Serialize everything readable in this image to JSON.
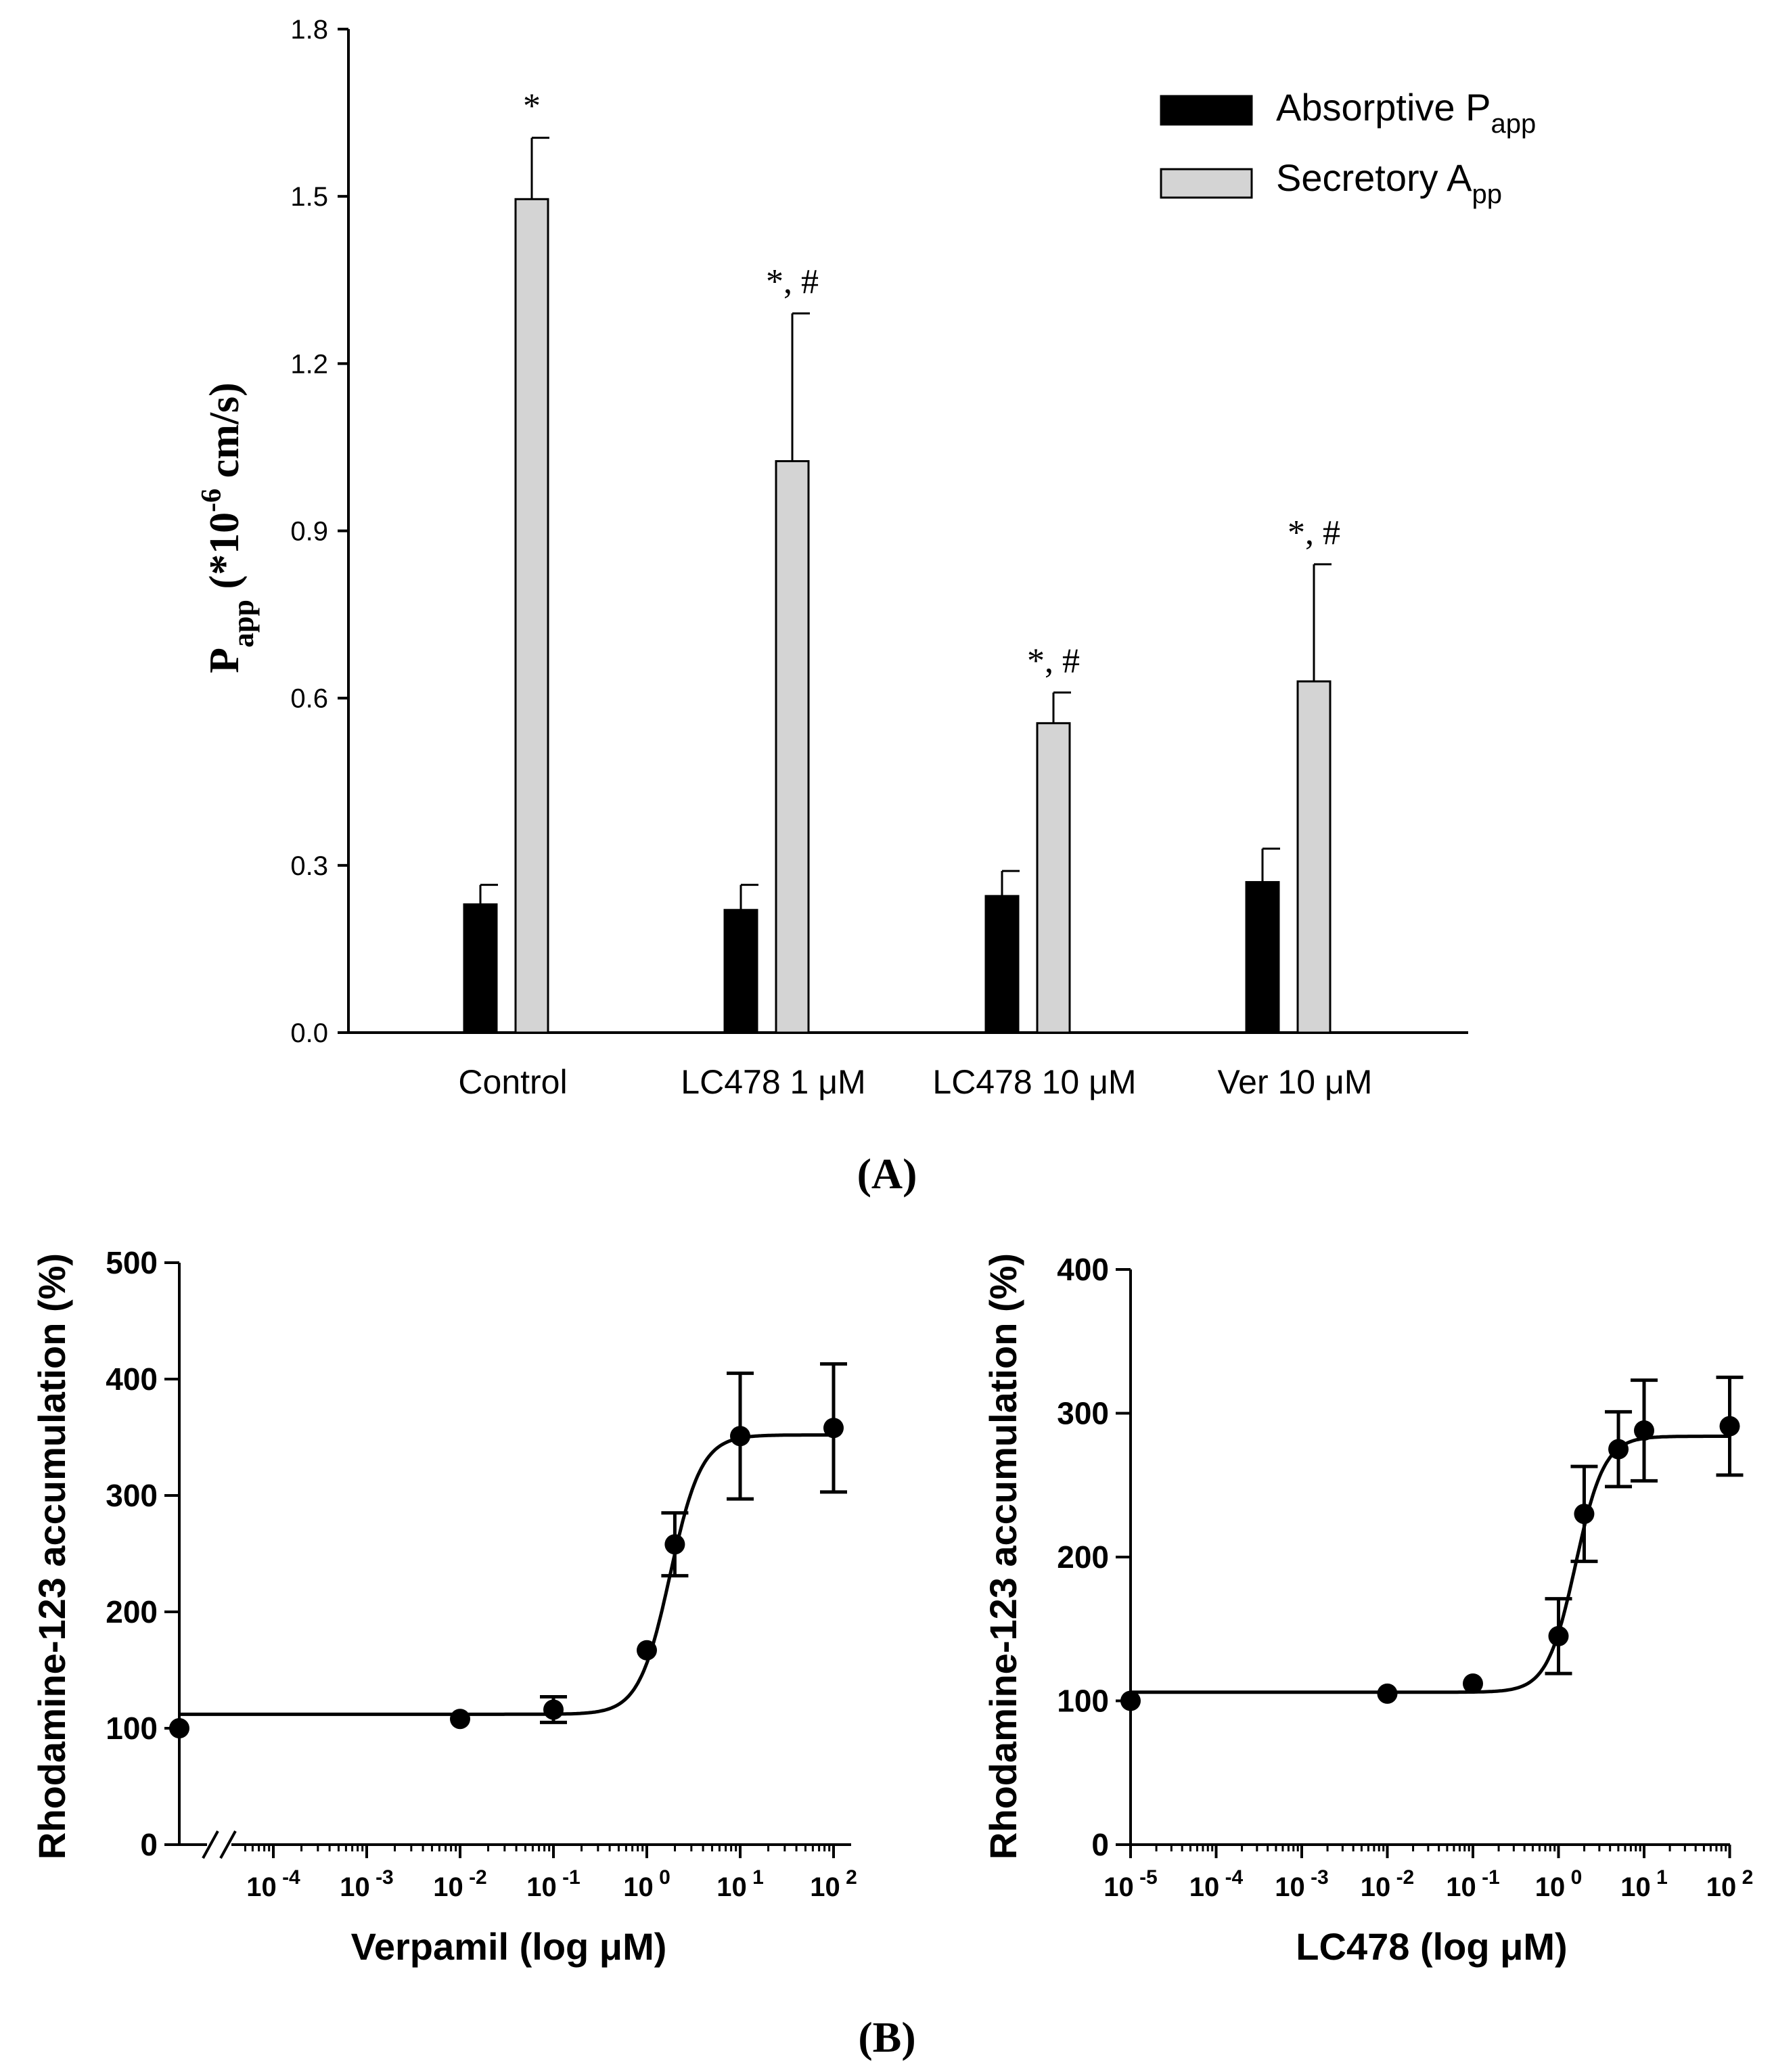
{
  "chart_data": [
    {
      "panel": "A",
      "type": "bar",
      "panel_label": "(A)",
      "ylabel": "P",
      "ylabel_sub": "app",
      "ylabel_rest": " (*10",
      "ylabel_exp": "-6",
      "ylabel_unit": " cm/s)",
      "ylim": [
        0,
        1.8
      ],
      "yticks": [
        "0.0",
        "0.3",
        "0.6",
        "0.9",
        "1.2",
        "1.5",
        "1.8"
      ],
      "categories": [
        "Control",
        "LC478 1 μM",
        "LC478 10 μM",
        "Ver 10 μM"
      ],
      "series": [
        {
          "name": "Absorptive P",
          "sub": "app",
          "color": "#000000",
          "values": [
            0.23,
            0.22,
            0.245,
            0.27
          ],
          "errors": [
            0.035,
            0.045,
            0.045,
            0.06
          ]
        },
        {
          "name": "Secretory A",
          "sub": "pp",
          "color": "#d4d4d4",
          "values": [
            1.495,
            1.025,
            0.555,
            0.63
          ],
          "errors": [
            0.11,
            0.265,
            0.055,
            0.21
          ]
        }
      ],
      "annotations": [
        "*",
        "*, #",
        "*, #",
        "*, #"
      ]
    },
    {
      "panel": "B-left",
      "type": "scatter",
      "xlabel": "Verpamil (log μM)",
      "ylabel": "Rhodamine-123 accumulation (%)",
      "ylim": [
        0,
        500
      ],
      "yticks": [
        "0",
        "100",
        "200",
        "300",
        "400",
        "500"
      ],
      "xticks": [
        {
          "exp": -4,
          "base": "10",
          "sup": "-4"
        },
        {
          "exp": -3,
          "base": "10",
          "sup": "-3"
        },
        {
          "exp": -2,
          "base": "10",
          "sup": "-2"
        },
        {
          "exp": -1,
          "base": "10",
          "sup": "-1"
        },
        {
          "exp": 0,
          "base": "10",
          "sup": "0"
        },
        {
          "exp": 1,
          "base": "10",
          "sup": "1"
        },
        {
          "exp": 2,
          "base": "10",
          "sup": "2"
        }
      ],
      "x_break": true,
      "points": [
        {
          "logx": -6,
          "y": 100,
          "err": 0
        },
        {
          "logx": -2,
          "y": 108,
          "err": 0
        },
        {
          "logx": -1,
          "y": 116,
          "err": 11
        },
        {
          "logx": 0,
          "y": 167,
          "err": 0
        },
        {
          "logx": 0.3,
          "y": 258,
          "err": 27
        },
        {
          "logx": 1,
          "y": 351,
          "err": 54
        },
        {
          "logx": 2,
          "y": 358,
          "err": 55
        }
      ],
      "fit": {
        "bottom": 112,
        "top": 352,
        "logEC50": 0.25,
        "hill": 2.6
      }
    },
    {
      "panel": "B-right",
      "type": "scatter",
      "xlabel": "LC478 (log μM)",
      "ylabel": "Rhodamine-123 accumulation (%)",
      "ylim": [
        0,
        400
      ],
      "yticks": [
        "0",
        "100",
        "200",
        "300",
        "400"
      ],
      "xticks": [
        {
          "exp": -5,
          "base": "10",
          "sup": "-5"
        },
        {
          "exp": -4,
          "base": "10",
          "sup": "-4"
        },
        {
          "exp": -3,
          "base": "10",
          "sup": "-3"
        },
        {
          "exp": -2,
          "base": "10",
          "sup": "-2"
        },
        {
          "exp": -1,
          "base": "10",
          "sup": "-1"
        },
        {
          "exp": 0,
          "base": "10",
          "sup": "0"
        },
        {
          "exp": 1,
          "base": "10",
          "sup": "1"
        },
        {
          "exp": 2,
          "base": "10",
          "sup": "2"
        }
      ],
      "x_break": false,
      "points": [
        {
          "logx": -5,
          "y": 100,
          "err": 0
        },
        {
          "logx": -2,
          "y": 105,
          "err": 0
        },
        {
          "logx": -1,
          "y": 112,
          "err": 0
        },
        {
          "logx": 0,
          "y": 145,
          "err": 26
        },
        {
          "logx": 0.3,
          "y": 230,
          "err": 33
        },
        {
          "logx": 0.7,
          "y": 275,
          "err": 26
        },
        {
          "logx": 1,
          "y": 288,
          "err": 35
        },
        {
          "logx": 2,
          "y": 291,
          "err": 34
        }
      ],
      "fit": {
        "bottom": 106,
        "top": 284,
        "logEC50": 0.2,
        "hill": 2.6
      }
    }
  ],
  "panel_b_label": "(B)"
}
